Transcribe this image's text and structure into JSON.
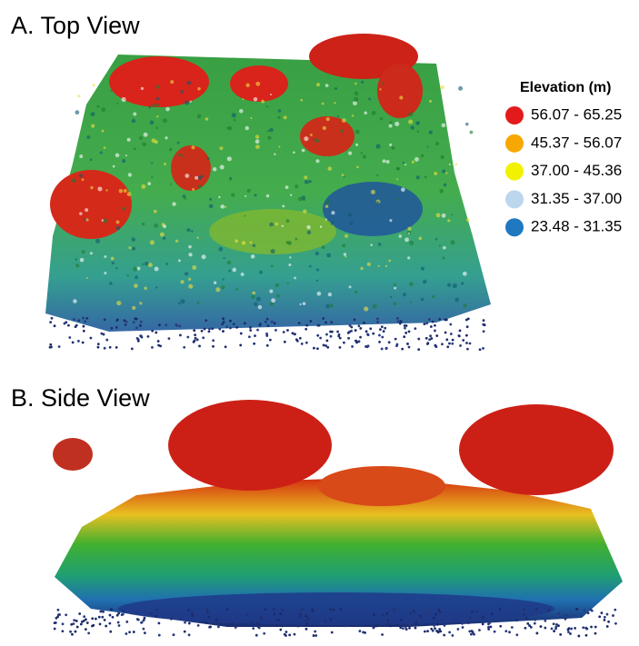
{
  "panels": [
    {
      "title": "A. Top View"
    },
    {
      "title": "B. Side View"
    }
  ],
  "legend": {
    "title": "Elevation (m)",
    "items": [
      {
        "label": "56.07 - 65.25",
        "color": "#e31a1c"
      },
      {
        "label": "45.37 - 56.07",
        "color": "#f7a800"
      },
      {
        "label": "37.00 - 45.36",
        "color": "#f2f200"
      },
      {
        "label": "31.35 - 37.00",
        "color": "#bcd6ee"
      },
      {
        "label": "23.48 - 31.35",
        "color": "#1f78c0"
      }
    ]
  }
}
